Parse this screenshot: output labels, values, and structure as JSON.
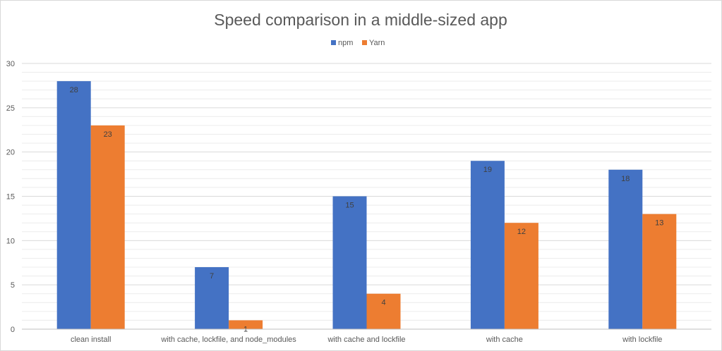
{
  "chart_data": {
    "type": "bar",
    "title": "Speed comparison in a middle-sized app",
    "categories": [
      "clean install",
      "with cache, lockfile, and node_modules",
      "with cache and lockfile",
      "with cache",
      "with lockfile"
    ],
    "series": [
      {
        "name": "npm",
        "values": [
          28,
          7,
          15,
          19,
          18
        ],
        "color": "#4472c4"
      },
      {
        "name": "Yarn",
        "values": [
          23,
          1,
          4,
          12,
          13
        ],
        "color": "#ed7d31"
      }
    ],
    "ylim": [
      0,
      30
    ],
    "yticks": [
      0,
      5,
      10,
      15,
      20,
      25,
      30
    ],
    "y_minor_step": 1,
    "grid": true,
    "data_labels": true,
    "legend": "top-center",
    "xlabel": "",
    "ylabel": ""
  }
}
